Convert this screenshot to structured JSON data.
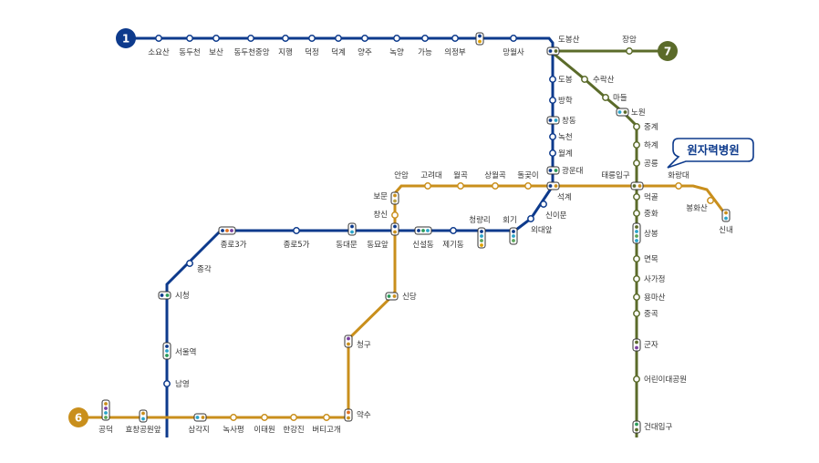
{
  "lines": {
    "line1": {
      "number": "1",
      "color": "#0d3a8c"
    },
    "line6": {
      "number": "6",
      "color": "#c98f1c"
    },
    "line7": {
      "number": "7",
      "color": "#5b6b2a"
    },
    "line2": {
      "color": "#1f4e9a"
    }
  },
  "callout": {
    "text": "원자력병원"
  },
  "stations": {
    "soyosan": "소요산",
    "dongducheon": "동두천",
    "bosan": "보산",
    "dongducheon_jungang": "동두천중앙",
    "jihaeng": "지행",
    "deokjeong": "덕정",
    "deokgye": "덕계",
    "yangju": "양주",
    "nogyang": "녹양",
    "ganeung": "가능",
    "uijeongbu": "의정부",
    "mangwolsa": "망월사",
    "dobongsan": "도봉산",
    "jangam": "장암",
    "dobong": "도봉",
    "banghak": "방학",
    "changdong": "창동",
    "nokcheon": "녹천",
    "wolgye": "월계",
    "gwangundae": "광운대",
    "seokgye": "석계",
    "sinimun": "신이문",
    "oedaeap": "외대앞",
    "hoegi": "회기",
    "cheongnyangni": "청량리",
    "jegidong": "제기동",
    "sinseoldong": "신설동",
    "dongmyo": "동묘앞",
    "dongdaemun": "동대문",
    "jongno5": "종로5가",
    "jongno3": "종로3가",
    "jonggak": "종각",
    "sicheong": "시청",
    "seoulyeok": "서울역",
    "namyeong": "남영",
    "suraksan": "수락산",
    "madeul": "마들",
    "nowon": "노원",
    "junggye": "중계",
    "hagye": "하계",
    "gongneung": "공릉",
    "taereung": "태릉입구",
    "hwarangdae": "화랑대",
    "bonghwasan": "봉화산",
    "sinnae": "신내",
    "meokgol": "먹골",
    "junghwa": "중화",
    "sangbong": "상봉",
    "myeonmok": "면목",
    "sagajeong": "사가정",
    "yongmasan": "용마산",
    "junggok": "중곡",
    "gunja": "군자",
    "childrens_park": "어린이대공원",
    "konkuk": "건대입구",
    "anam": "안암",
    "korea_univ": "고려대",
    "wolgok": "월곡",
    "sangwolgok": "상월곡",
    "dolgoji": "돌곶이",
    "bomun": "보문",
    "changsin": "창신",
    "sindang": "신당",
    "cheonggu": "청구",
    "yaksu": "약수",
    "beotigogae": "버티고개",
    "hangangjin": "한강진",
    "itaewon": "이태원",
    "noksapyeong": "녹사평",
    "samgakji": "삼각지",
    "hyochang": "효창공원앞",
    "gongdeok": "공덕"
  }
}
